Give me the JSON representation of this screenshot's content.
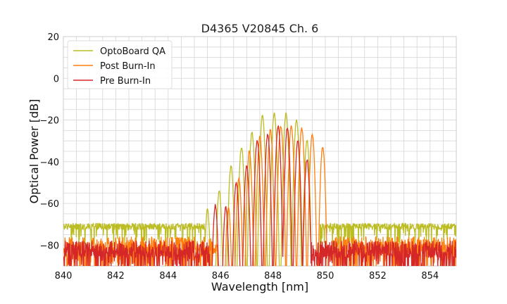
{
  "chart_data": {
    "type": "line",
    "title": "D4365 V20845 Ch. 6",
    "xlabel": "Wavelength [nm]",
    "ylabel": "Optical Power [dB]",
    "xlim": [
      840,
      855
    ],
    "ylim": [
      -90,
      20
    ],
    "x_ticks": [
      840,
      842,
      844,
      846,
      848,
      850,
      852,
      854
    ],
    "x_tick_labels": [
      "840",
      "842",
      "844",
      "846",
      "848",
      "850",
      "852",
      "854"
    ],
    "y_ticks": [
      20,
      0,
      -20,
      -40,
      -60,
      -80
    ],
    "y_tick_labels": [
      "20",
      "0",
      "−20",
      "−40",
      "−60",
      "−80"
    ],
    "grid": true,
    "legend_position": "top-left",
    "series": [
      {
        "name": "OptoBoard QA",
        "color": "#bcbd22",
        "noise_floor_db": -71,
        "noise_floor_range": [
          840,
          845.4
        ],
        "noise_floor_after_range": [
          849.8,
          855
        ],
        "peaks": [
          {
            "x": 845.5,
            "y": -63
          },
          {
            "x": 845.95,
            "y": -54
          },
          {
            "x": 846.4,
            "y": -42
          },
          {
            "x": 846.8,
            "y": -33
          },
          {
            "x": 847.2,
            "y": -26
          },
          {
            "x": 847.6,
            "y": -18
          },
          {
            "x": 848.05,
            "y": -17
          },
          {
            "x": 848.5,
            "y": -17
          },
          {
            "x": 848.9,
            "y": -20
          },
          {
            "x": 849.3,
            "y": -30
          }
        ]
      },
      {
        "name": "Post Burn-In",
        "color": "#ff7f0e",
        "noise_floor_db": -80,
        "noise_floor_range": [
          840,
          845.9
        ],
        "noise_floor_after_range": [
          850.3,
          855
        ],
        "peaks": [
          {
            "x": 846.3,
            "y": -62
          },
          {
            "x": 846.7,
            "y": -48
          },
          {
            "x": 847.1,
            "y": -35
          },
          {
            "x": 847.5,
            "y": -28
          },
          {
            "x": 847.9,
            "y": -25
          },
          {
            "x": 848.3,
            "y": -23
          },
          {
            "x": 848.7,
            "y": -23
          },
          {
            "x": 849.1,
            "y": -24
          },
          {
            "x": 849.5,
            "y": -27
          },
          {
            "x": 849.9,
            "y": -33
          }
        ]
      },
      {
        "name": "Pre Burn-In",
        "color": "#d62728",
        "noise_floor_db": -82,
        "noise_floor_range": [
          840,
          845.6
        ],
        "noise_floor_after_range": [
          849.4,
          855
        ],
        "peaks": [
          {
            "x": 845.8,
            "y": -61
          },
          {
            "x": 846.2,
            "y": -62
          },
          {
            "x": 846.6,
            "y": -50
          },
          {
            "x": 847.0,
            "y": -42
          },
          {
            "x": 847.4,
            "y": -30
          },
          {
            "x": 847.8,
            "y": -27
          },
          {
            "x": 848.2,
            "y": -23
          },
          {
            "x": 848.55,
            "y": -24
          },
          {
            "x": 848.95,
            "y": -30
          },
          {
            "x": 849.3,
            "y": -39
          }
        ]
      }
    ]
  }
}
